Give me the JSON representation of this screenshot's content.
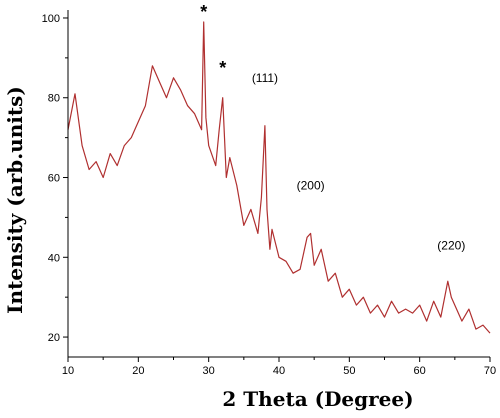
{
  "chart_data": {
    "type": "line",
    "xlabel": "2 Theta (Degree)",
    "ylabel": "Intensity (arb.units)",
    "xlim": [
      10,
      70
    ],
    "ylim": [
      15,
      102
    ],
    "xticks": [
      10,
      20,
      30,
      40,
      50,
      60,
      70
    ],
    "yticks": [
      20,
      40,
      60,
      80,
      100
    ],
    "grid": false,
    "line_color": "#b03030",
    "series": [
      {
        "x": [
          10,
          11,
          12,
          13,
          14,
          15,
          16,
          17,
          18,
          19,
          20,
          21,
          22,
          23,
          24,
          25,
          26,
          27,
          28,
          29,
          29.3,
          29.6,
          30,
          31,
          31.5,
          32,
          32.5,
          33,
          34,
          35,
          36,
          37,
          37.5,
          38,
          38.3,
          38.7,
          39,
          40,
          41,
          42,
          43,
          44,
          44.5,
          45,
          46,
          47,
          48,
          49,
          50,
          51,
          52,
          53,
          54,
          55,
          56,
          57,
          58,
          59,
          60,
          61,
          62,
          63,
          64,
          64.5,
          65,
          66,
          67,
          68,
          69,
          70
        ],
        "y": [
          72,
          81,
          68,
          62,
          64,
          60,
          66,
          63,
          68,
          70,
          74,
          78,
          88,
          84,
          80,
          85,
          82,
          78,
          76,
          72,
          99,
          75,
          68,
          63,
          72,
          80,
          60,
          65,
          58,
          48,
          52,
          46,
          55,
          73,
          52,
          42,
          47,
          40,
          39,
          36,
          37,
          45,
          46,
          38,
          42,
          34,
          36,
          30,
          32,
          28,
          30,
          26,
          28,
          25,
          29,
          26,
          27,
          26,
          28,
          24,
          29,
          25,
          34,
          30,
          28,
          24,
          27,
          22,
          23,
          21
        ]
      }
    ],
    "annotations": [
      {
        "text": "*",
        "x": 29.3,
        "y": 100
      },
      {
        "text": "*",
        "x": 32,
        "y": 86
      },
      {
        "text": "(111)",
        "x": 38,
        "y": 84
      },
      {
        "text": "(200)",
        "x": 44.5,
        "y": 57
      },
      {
        "text": "(220)",
        "x": 64.5,
        "y": 42
      }
    ]
  }
}
